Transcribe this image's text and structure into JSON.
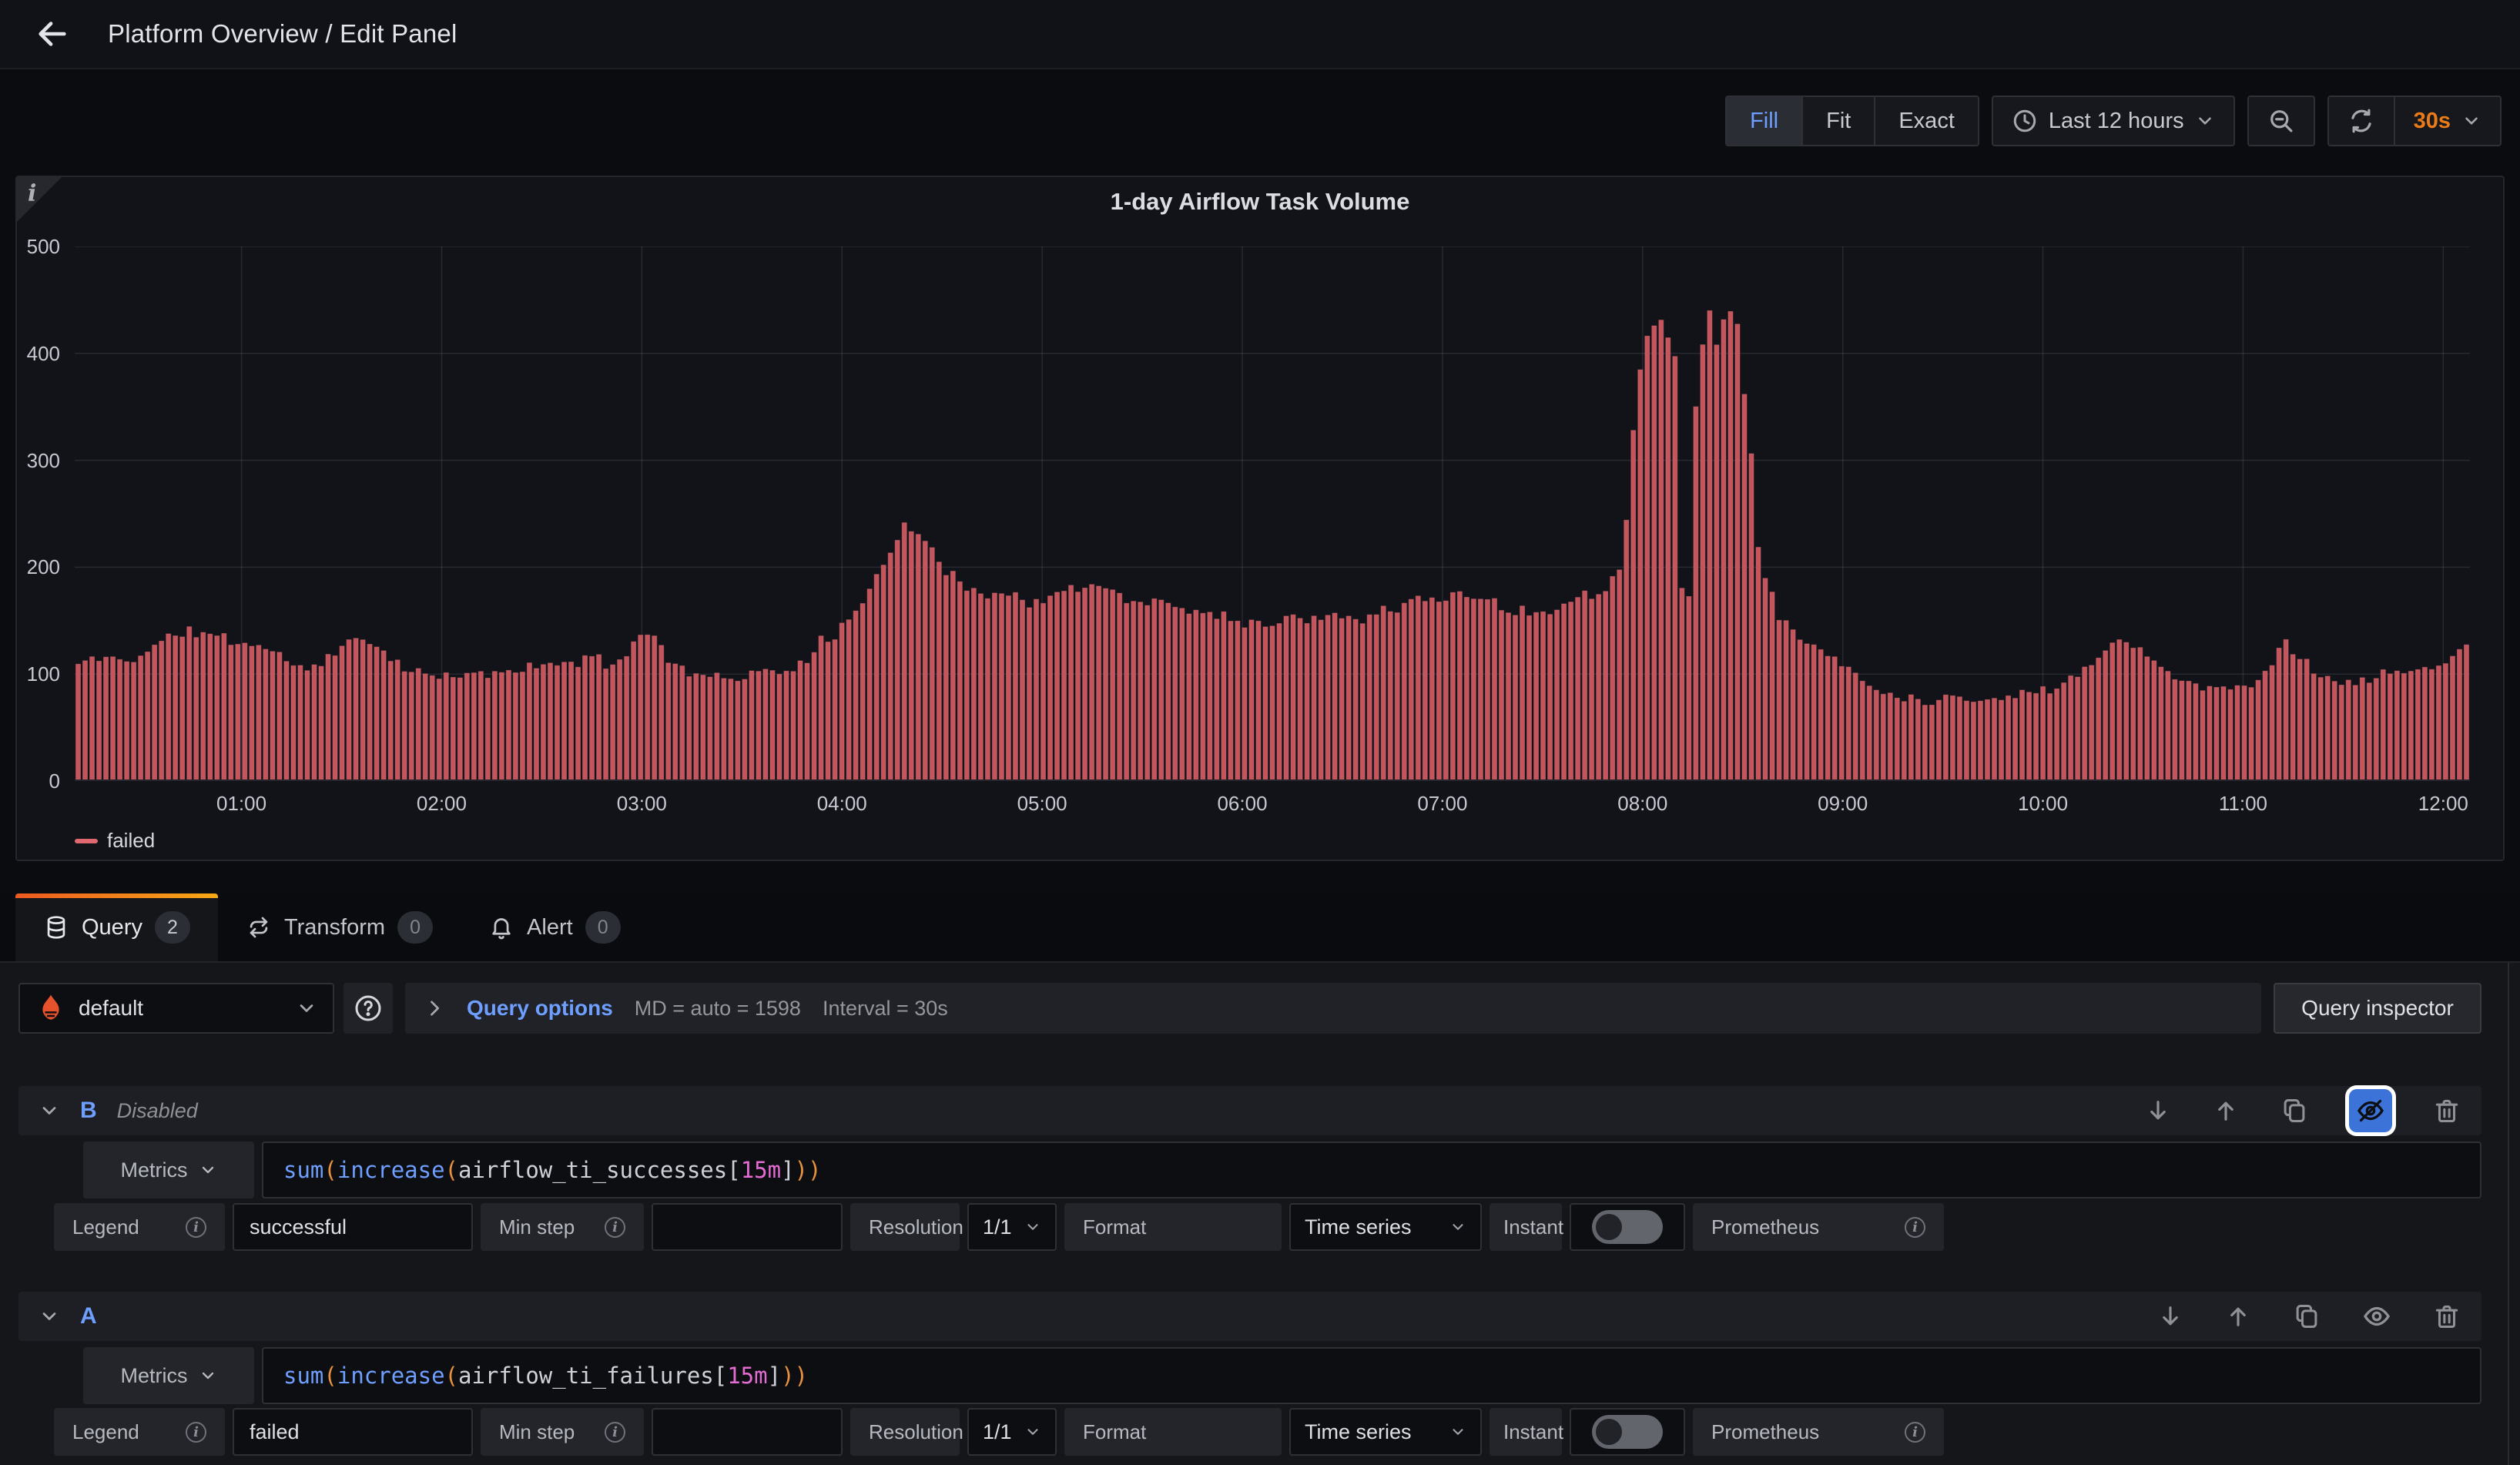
{
  "topnav": {
    "title": "Platform Overview / Edit Panel"
  },
  "toolbar": {
    "fill": "Fill",
    "fit": "Fit",
    "exact": "Exact",
    "time_range": "Last 12 hours",
    "refresh_interval": "30s"
  },
  "panel": {
    "title": "1-day Airflow Task Volume",
    "info_corner": "i",
    "legend": "failed"
  },
  "chart_data": {
    "type": "bar",
    "title": "1-day Airflow Task Volume",
    "ylabel": "",
    "xlabel": "",
    "ylim": [
      0,
      500
    ],
    "y_ticks": [
      0,
      100,
      200,
      300,
      400,
      500
    ],
    "x_axis": {
      "start_minute": 10,
      "end_minute": 728,
      "tick_minutes": [
        60,
        120,
        180,
        240,
        300,
        360,
        420,
        480,
        540,
        600,
        660,
        720
      ],
      "tick_labels": [
        "01:00",
        "02:00",
        "03:00",
        "04:00",
        "05:00",
        "06:00",
        "07:00",
        "08:00",
        "09:00",
        "10:00",
        "11:00",
        "12:00"
      ]
    },
    "grid": true,
    "legend_position": "bottom-left",
    "bar_count": 345,
    "series": [
      {
        "name": "failed",
        "color": "#c5555d",
        "edge_color": "#e37178",
        "points": [
          [
            10,
            108
          ],
          [
            18,
            116
          ],
          [
            26,
            112
          ],
          [
            34,
            126
          ],
          [
            42,
            140
          ],
          [
            50,
            137
          ],
          [
            58,
            130
          ],
          [
            66,
            127
          ],
          [
            74,
            112
          ],
          [
            80,
            104
          ],
          [
            88,
            121
          ],
          [
            95,
            133
          ],
          [
            102,
            126
          ],
          [
            110,
            101
          ],
          [
            120,
            97
          ],
          [
            130,
            99
          ],
          [
            140,
            103
          ],
          [
            150,
            107
          ],
          [
            158,
            112
          ],
          [
            166,
            113
          ],
          [
            172,
            108
          ],
          [
            178,
            134
          ],
          [
            183,
            140
          ],
          [
            188,
            112
          ],
          [
            196,
            101
          ],
          [
            205,
            96
          ],
          [
            214,
            100
          ],
          [
            222,
            104
          ],
          [
            230,
            108
          ],
          [
            233,
            137
          ],
          [
            237,
            124
          ],
          [
            242,
            152
          ],
          [
            247,
            176
          ],
          [
            252,
            200
          ],
          [
            256,
            228
          ],
          [
            259,
            245
          ],
          [
            263,
            234
          ],
          [
            267,
            212
          ],
          [
            271,
            196
          ],
          [
            276,
            186
          ],
          [
            283,
            177
          ],
          [
            291,
            171
          ],
          [
            300,
            168
          ],
          [
            308,
            176
          ],
          [
            315,
            184
          ],
          [
            322,
            176
          ],
          [
            331,
            168
          ],
          [
            341,
            162
          ],
          [
            351,
            157
          ],
          [
            360,
            151
          ],
          [
            368,
            146
          ],
          [
            376,
            152
          ],
          [
            386,
            158
          ],
          [
            395,
            154
          ],
          [
            405,
            163
          ],
          [
            414,
            170
          ],
          [
            420,
            167
          ],
          [
            425,
            179
          ],
          [
            432,
            171
          ],
          [
            439,
            161
          ],
          [
            446,
            156
          ],
          [
            452,
            163
          ],
          [
            458,
            169
          ],
          [
            464,
            173
          ],
          [
            469,
            182
          ],
          [
            473,
            200
          ],
          [
            475,
            245
          ],
          [
            477,
            330
          ],
          [
            479,
            395
          ],
          [
            481,
            420
          ],
          [
            484,
            430
          ],
          [
            487,
            417
          ],
          [
            489,
            426
          ],
          [
            490,
            385
          ],
          [
            491,
            255
          ],
          [
            492,
            160
          ],
          [
            493,
            133
          ],
          [
            494,
            185
          ],
          [
            495,
            265
          ],
          [
            496,
            345
          ],
          [
            497,
            402
          ],
          [
            499,
            434
          ],
          [
            502,
            424
          ],
          [
            505,
            438
          ],
          [
            507,
            430
          ],
          [
            509,
            419
          ],
          [
            511,
            350
          ],
          [
            513,
            282
          ],
          [
            515,
            215
          ],
          [
            518,
            176
          ],
          [
            521,
            156
          ],
          [
            525,
            141
          ],
          [
            530,
            126
          ],
          [
            535,
            119
          ],
          [
            540,
            111
          ],
          [
            545,
            96
          ],
          [
            550,
            86
          ],
          [
            556,
            80
          ],
          [
            562,
            77
          ],
          [
            568,
            75
          ],
          [
            574,
            79
          ],
          [
            580,
            77
          ],
          [
            586,
            75
          ],
          [
            592,
            81
          ],
          [
            598,
            84
          ],
          [
            604,
            87
          ],
          [
            608,
            95
          ],
          [
            612,
            104
          ],
          [
            616,
            117
          ],
          [
            620,
            127
          ],
          [
            624,
            133
          ],
          [
            628,
            127
          ],
          [
            632,
            116
          ],
          [
            636,
            103
          ],
          [
            641,
            93
          ],
          [
            647,
            89
          ],
          [
            653,
            87
          ],
          [
            659,
            86
          ],
          [
            664,
            94
          ],
          [
            668,
            109
          ],
          [
            672,
            131
          ],
          [
            676,
            121
          ],
          [
            680,
            106
          ],
          [
            685,
            96
          ],
          [
            690,
            91
          ],
          [
            695,
            93
          ],
          [
            700,
            97
          ],
          [
            705,
            103
          ],
          [
            708,
            97
          ],
          [
            712,
            104
          ],
          [
            716,
            110
          ],
          [
            720,
            107
          ],
          [
            724,
            119
          ],
          [
            728,
            133
          ]
        ]
      }
    ]
  },
  "tabs": {
    "query": {
      "label": "Query",
      "count": "2"
    },
    "transform": {
      "label": "Transform",
      "count": "0"
    },
    "alert": {
      "label": "Alert",
      "count": "0"
    }
  },
  "datasource_row": {
    "datasource": "default",
    "query_options_label": "Query options",
    "md": "MD = auto = 1598",
    "interval": "Interval = 30s",
    "query_inspector": "Query inspector"
  },
  "queries": {
    "b": {
      "ref": "B",
      "status": "Disabled",
      "selector": "Metrics",
      "expr": {
        "fn1": "sum",
        "p1": "(",
        "fn2": "increase",
        "p2": "(",
        "metric": "airflow_ti_successes",
        "lb": "[",
        "range": "15m",
        "rb": "]",
        "p3": "))"
      },
      "legend_label": "Legend",
      "legend_value": "successful",
      "min_step_label": "Min step",
      "min_step_value": "",
      "resolution_label": "Resolution",
      "resolution_value": "1/1",
      "format_label": "Format",
      "format_value": "Time series",
      "instant_label": "Instant",
      "datasource_name": "Prometheus"
    },
    "a": {
      "ref": "A",
      "status": "",
      "selector": "Metrics",
      "expr": {
        "fn1": "sum",
        "p1": "(",
        "fn2": "increase",
        "p2": "(",
        "metric": "airflow_ti_failures",
        "lb": "[",
        "range": "15m",
        "rb": "]",
        "p3": "))"
      },
      "legend_label": "Legend",
      "legend_value": "failed",
      "min_step_label": "Min step",
      "min_step_value": "",
      "resolution_label": "Resolution",
      "resolution_value": "1/1",
      "format_label": "Format",
      "format_value": "Time series",
      "instant_label": "Instant",
      "datasource_name": "Prometheus"
    }
  },
  "colors": {
    "series_red": "#c5555d",
    "series_edge": "#e37178",
    "legend_dash": "#e0696f",
    "accent_blue": "#6e9fff",
    "interval_orange": "#eb7b18",
    "prometheus_orange": "#e6522c",
    "tab_gradient_left": "#ed5a20",
    "tab_gradient_right": "#f7a815"
  }
}
